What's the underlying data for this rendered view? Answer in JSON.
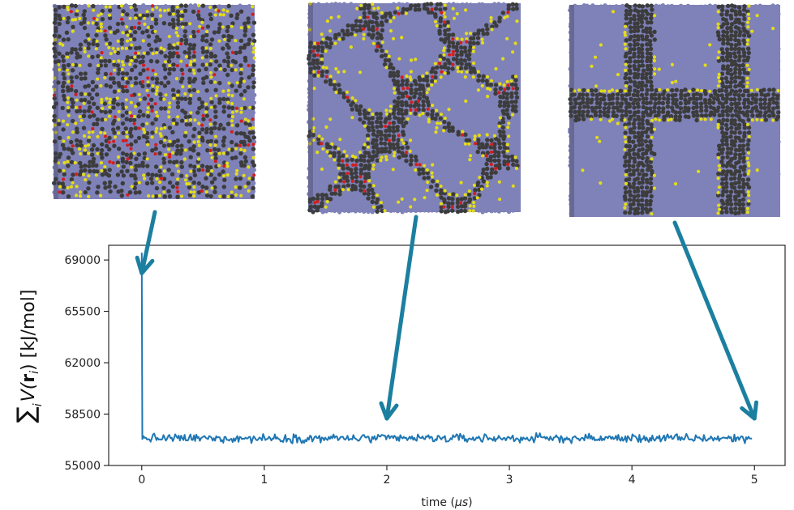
{
  "colors": {
    "series": "#1f77b4",
    "arrow": "#1b7fa0",
    "bead_blue": "#7f82b8",
    "bead_dark": "#3c3c3c",
    "bead_yellow": "#e4dc18",
    "bead_red": "#d21e1e"
  },
  "chart_data": {
    "type": "line",
    "xlabel_prefix": "time (",
    "xlabel_unit": "μs",
    "xlabel_suffix": ")",
    "ylabel": "∑ V(ri) [kJ/mol]",
    "ylabel_sum": "∑",
    "ylabel_index": "i",
    "ylabel_V": "V(",
    "ylabel_r": "r",
    "ylabel_sub": "i",
    "ylabel_rest": ") [kJ/mol]",
    "xlim": [
      -0.27,
      5.25
    ],
    "ylim": [
      55000,
      70000
    ],
    "xticks": [
      0,
      1,
      2,
      3,
      4,
      5
    ],
    "yticks": [
      55000,
      58500,
      62000,
      65500,
      69000
    ],
    "grid": false,
    "series": [
      {
        "initial_points": [
          [
            0,
            69500
          ],
          [
            0,
            68500
          ],
          [
            0.005,
            56800
          ]
        ],
        "plateau_mean": 56850,
        "plateau_noise": 220,
        "x_end": 4.98
      }
    ],
    "snapshots": [
      {
        "time": 0,
        "pattern": "mixed"
      },
      {
        "time": 2,
        "pattern": "network"
      },
      {
        "time": 5,
        "pattern": "lamellar"
      }
    ]
  }
}
